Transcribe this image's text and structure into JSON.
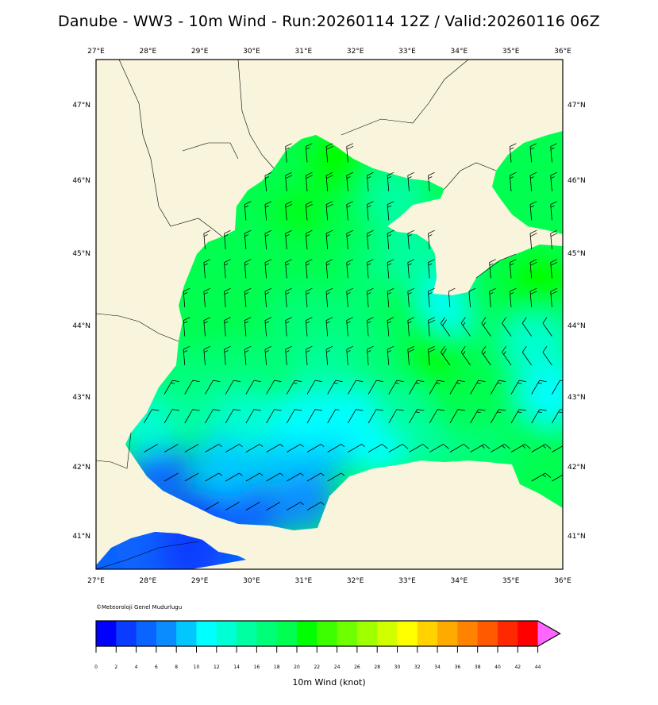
{
  "title": "Danube - WW3 - 10m Wind - Run:20260114 12Z / Valid:20260116 06Z",
  "copyright": "©Meteoroloji Genel Mudurlugu",
  "colorbar": {
    "label": "10m Wind (knot)",
    "ticks": [
      "0",
      "2",
      "4",
      "6",
      "8",
      "10",
      "12",
      "14",
      "16",
      "18",
      "20",
      "22",
      "24",
      "26",
      "28",
      "30",
      "32",
      "34",
      "36",
      "38",
      "40",
      "42",
      "44"
    ],
    "colors": [
      "#0000ff",
      "#0a3cff",
      "#0a64ff",
      "#0a8cff",
      "#00c8ff",
      "#00ffff",
      "#00ffd2",
      "#00ffa0",
      "#00ff78",
      "#00ff50",
      "#00ff00",
      "#3cff00",
      "#6eff00",
      "#a0ff00",
      "#d2ff00",
      "#ffff00",
      "#ffd200",
      "#ffaa00",
      "#ff8200",
      "#ff5a00",
      "#ff2800",
      "#ff0000",
      "#ff66ff"
    ]
  },
  "map": {
    "lon_labels": [
      "27°E",
      "28°E",
      "29°E",
      "30°E",
      "31°E",
      "32°E",
      "33°E",
      "34°E",
      "35°E",
      "36°E"
    ],
    "lat_labels": [
      "47°N",
      "46°N",
      "45°N",
      "44°N",
      "43°N",
      "42°N",
      "41°N"
    ],
    "lon_range": [
      27,
      36
    ],
    "lat_range": [
      40.55,
      47.6
    ],
    "land_color": "#f8f5dc",
    "wind_field": [
      {
        "lon": 29.0,
        "lat": 41.2,
        "speed": 3
      },
      {
        "lon": 30.0,
        "lat": 41.3,
        "speed": 4
      },
      {
        "lon": 31.0,
        "lat": 41.5,
        "speed": 6
      },
      {
        "lon": 28.2,
        "lat": 41.9,
        "speed": 4
      },
      {
        "lon": 29.5,
        "lat": 42.0,
        "speed": 8
      },
      {
        "lon": 30.5,
        "lat": 42.2,
        "speed": 9
      },
      {
        "lon": 31.5,
        "lat": 42.3,
        "speed": 8
      },
      {
        "lon": 32.5,
        "lat": 42.3,
        "speed": 11
      },
      {
        "lon": 33.5,
        "lat": 42.4,
        "speed": 14
      },
      {
        "lon": 34.5,
        "lat": 42.3,
        "speed": 17
      },
      {
        "lon": 35.5,
        "lat": 42.5,
        "speed": 19
      },
      {
        "lon": 28.0,
        "lat": 42.6,
        "speed": 12
      },
      {
        "lon": 29.0,
        "lat": 42.8,
        "speed": 14
      },
      {
        "lon": 30.0,
        "lat": 42.7,
        "speed": 12
      },
      {
        "lon": 31.0,
        "lat": 42.7,
        "speed": 11
      },
      {
        "lon": 32.0,
        "lat": 42.7,
        "speed": 11
      },
      {
        "lon": 33.0,
        "lat": 42.8,
        "speed": 15
      },
      {
        "lon": 34.0,
        "lat": 42.9,
        "speed": 19
      },
      {
        "lon": 35.0,
        "lat": 43.0,
        "speed": 19
      },
      {
        "lon": 35.8,
        "lat": 43.0,
        "speed": 11
      },
      {
        "lon": 28.5,
        "lat": 43.3,
        "speed": 16
      },
      {
        "lon": 29.5,
        "lat": 43.4,
        "speed": 17
      },
      {
        "lon": 30.5,
        "lat": 43.3,
        "speed": 16
      },
      {
        "lon": 31.5,
        "lat": 43.4,
        "speed": 15
      },
      {
        "lon": 32.5,
        "lat": 43.4,
        "speed": 17
      },
      {
        "lon": 33.5,
        "lat": 43.5,
        "speed": 20
      },
      {
        "lon": 34.5,
        "lat": 43.6,
        "speed": 19
      },
      {
        "lon": 35.5,
        "lat": 43.7,
        "speed": 12
      },
      {
        "lon": 29.0,
        "lat": 44.0,
        "speed": 18
      },
      {
        "lon": 30.0,
        "lat": 44.1,
        "speed": 18
      },
      {
        "lon": 31.0,
        "lat": 44.0,
        "speed": 17
      },
      {
        "lon": 32.0,
        "lat": 44.1,
        "speed": 17
      },
      {
        "lon": 33.0,
        "lat": 44.2,
        "speed": 18
      },
      {
        "lon": 33.9,
        "lat": 44.3,
        "speed": 10
      },
      {
        "lon": 34.6,
        "lat": 44.4,
        "speed": 19
      },
      {
        "lon": 35.5,
        "lat": 44.5,
        "speed": 21
      },
      {
        "lon": 29.5,
        "lat": 44.8,
        "speed": 18
      },
      {
        "lon": 30.5,
        "lat": 44.8,
        "speed": 19
      },
      {
        "lon": 31.5,
        "lat": 44.8,
        "speed": 18
      },
      {
        "lon": 32.5,
        "lat": 44.9,
        "speed": 17
      },
      {
        "lon": 33.2,
        "lat": 44.9,
        "speed": 15
      },
      {
        "lon": 30.0,
        "lat": 45.6,
        "speed": 19
      },
      {
        "lon": 31.0,
        "lat": 45.6,
        "speed": 20
      },
      {
        "lon": 32.0,
        "lat": 45.5,
        "speed": 19
      },
      {
        "lon": 32.8,
        "lat": 45.7,
        "speed": 15
      },
      {
        "lon": 30.8,
        "lat": 46.2,
        "speed": 19
      },
      {
        "lon": 31.6,
        "lat": 46.2,
        "speed": 21
      },
      {
        "lon": 35.3,
        "lat": 46.0,
        "speed": 18
      },
      {
        "lon": 35.7,
        "lat": 45.5,
        "speed": 19
      },
      {
        "lon": 28.0,
        "lat": 40.9,
        "speed": 4
      },
      {
        "lon": 28.8,
        "lat": 40.8,
        "speed": 3
      }
    ]
  }
}
